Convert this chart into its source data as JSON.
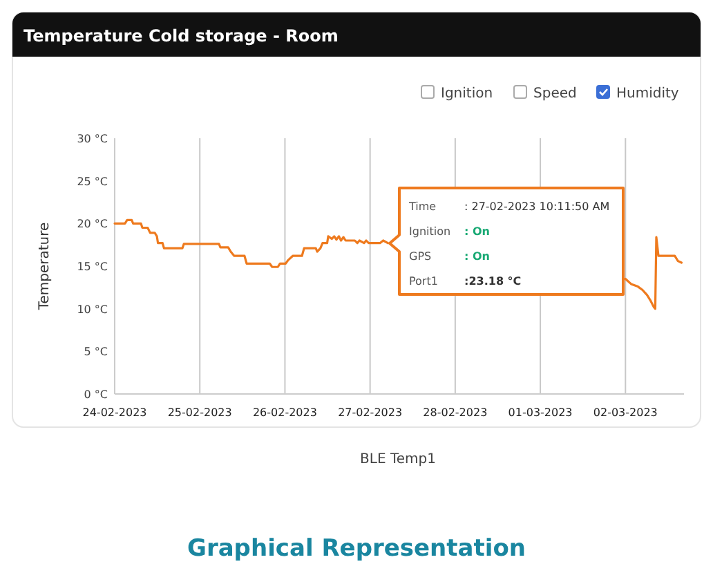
{
  "chart_data": {
    "type": "line",
    "title": "Temperature Cold storage - Room",
    "xlabel": "BLE Temp1",
    "ylabel": "Temperature",
    "annotations": [
      "Ignition",
      "Speed",
      "Humidity",
      "Time : 27-02-2023 10:11:50 AM",
      "Ignition : On",
      "GPS : On",
      "Port1 :23.18 °C",
      "Graphical Representation"
    ],
    "xlim": [
      "2023-02-24T00:00",
      "2023-03-02T16:30"
    ],
    "xticks": [
      {
        "value": "2023-02-24",
        "label": "24-02-2023"
      },
      {
        "value": "2023-02-25",
        "label": "25-02-2023"
      },
      {
        "value": "2023-02-26",
        "label": "26-02-2023"
      },
      {
        "value": "2023-02-27",
        "label": "27-02-2023"
      },
      {
        "value": "2023-02-28",
        "label": "28-02-2023"
      },
      {
        "value": "2023-03-01",
        "label": "01-03-2023"
      },
      {
        "value": "2023-03-02",
        "label": "02-03-2023"
      }
    ],
    "ylim": [
      0,
      30
    ],
    "yticks": [
      {
        "value": 0,
        "label": "0 °C"
      },
      {
        "value": 5,
        "label": "5 °C"
      },
      {
        "value": 10,
        "label": "10 °C"
      },
      {
        "value": 15,
        "label": "15 °C"
      },
      {
        "value": 20,
        "label": "20 °C"
      },
      {
        "value": 25,
        "label": "25 °C"
      },
      {
        "value": 30,
        "label": "30 °C"
      }
    ],
    "grid": "x",
    "marker": "none",
    "line_style": "solid",
    "series": [
      {
        "color": "#ee7a1e",
        "x": [
          "2023-02-24T00:00",
          "2023-02-24T02:54",
          "2023-02-24T03:30",
          "2023-02-24T04:48",
          "2023-02-24T05:12",
          "2023-02-24T07:24",
          "2023-02-24T07:48",
          "2023-02-24T09:18",
          "2023-02-24T10:00",
          "2023-02-24T11:18",
          "2023-02-24T11:54",
          "2023-02-24T12:12",
          "2023-02-24T13:30",
          "2023-02-24T13:54",
          "2023-02-24T19:06",
          "2023-02-24T19:30",
          "2023-02-25T05:24",
          "2023-02-25T05:48",
          "2023-02-25T08:00",
          "2023-02-25T08:42",
          "2023-02-25T09:42",
          "2023-02-25T12:36",
          "2023-02-25T13:12",
          "2023-02-25T19:42",
          "2023-02-25T20:24",
          "2023-02-25T22:00",
          "2023-02-25T22:36",
          "2023-02-26T00:12",
          "2023-02-26T00:54",
          "2023-02-26T02:12",
          "2023-02-26T04:48",
          "2023-02-26T05:24",
          "2023-02-26T08:42",
          "2023-02-26T09:06",
          "2023-02-26T10:00",
          "2023-02-26T10:36",
          "2023-02-26T11:54",
          "2023-02-26T12:12",
          "2023-02-26T13:12",
          "2023-02-26T13:54",
          "2023-02-26T14:30",
          "2023-02-26T15:12",
          "2023-02-26T15:48",
          "2023-02-26T16:30",
          "2023-02-26T17:06",
          "2023-02-26T19:42",
          "2023-02-26T20:24",
          "2023-02-26T21:00",
          "2023-02-26T22:18",
          "2023-02-26T22:54",
          "2023-02-26T23:36",
          "2023-02-27T02:48",
          "2023-02-27T03:42",
          "2023-02-27T05:00",
          "2023-02-27T06:00",
          "2023-03-02T00:00",
          "2023-03-02T01:36",
          "2023-03-02T03:30",
          "2023-03-02T04:48",
          "2023-03-02T06:06",
          "2023-03-02T07:00",
          "2023-03-02T08:00",
          "2023-03-02T08:24",
          "2023-03-02T08:42",
          "2023-03-02T09:18",
          "2023-03-02T13:54",
          "2023-03-02T14:48",
          "2023-03-02T15:48"
        ],
        "values": [
          20.0,
          20.0,
          20.4,
          20.4,
          20.0,
          20.0,
          19.5,
          19.5,
          18.9,
          18.9,
          18.5,
          17.7,
          17.7,
          17.1,
          17.1,
          17.6,
          17.6,
          17.2,
          17.2,
          16.7,
          16.2,
          16.2,
          15.3,
          15.3,
          14.9,
          14.9,
          15.3,
          15.3,
          15.7,
          16.2,
          16.2,
          17.1,
          17.1,
          16.7,
          17.1,
          17.7,
          17.7,
          18.5,
          18.2,
          18.5,
          18.1,
          18.5,
          18.0,
          18.4,
          18.0,
          18.0,
          17.7,
          18.0,
          17.7,
          18.0,
          17.7,
          17.7,
          18.0,
          17.7,
          null,
          13.5,
          12.9,
          12.6,
          12.2,
          11.6,
          11.0,
          10.2,
          10.0,
          18.4,
          16.2,
          16.2,
          15.6,
          15.4
        ]
      }
    ]
  }
}
